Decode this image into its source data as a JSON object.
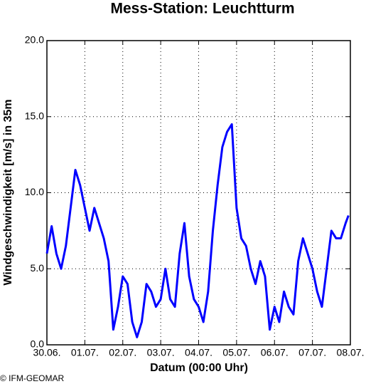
{
  "chart_data": {
    "type": "line",
    "title": "Mess-Station: Leuchtturm",
    "x_label": "Datum (00:00 Uhr)",
    "y_label": "Windgeschwindigkeit [m/s] in 35m",
    "credit": "© IFM-GEOMAR",
    "x": [
      0,
      0.125,
      0.25,
      0.375,
      0.5,
      0.625,
      0.75,
      0.875,
      1,
      1.125,
      1.25,
      1.375,
      1.5,
      1.625,
      1.75,
      1.875,
      2,
      2.125,
      2.25,
      2.375,
      2.5,
      2.625,
      2.75,
      2.875,
      3,
      3.125,
      3.25,
      3.375,
      3.5,
      3.625,
      3.75,
      3.875,
      4,
      4.125,
      4.25,
      4.375,
      4.5,
      4.625,
      4.75,
      4.875,
      5,
      5.125,
      5.25,
      5.375,
      5.5,
      5.625,
      5.75,
      5.875,
      6,
      6.125,
      6.25,
      6.375,
      6.5,
      6.625,
      6.75,
      6.875,
      7,
      7.125,
      7.25,
      7.375,
      7.5,
      7.625,
      7.75,
      7.875,
      7.95
    ],
    "series": [
      {
        "name": "Windgeschwindigkeit",
        "color": "#0000ff",
        "values": [
          6,
          7.8,
          6,
          5,
          6.5,
          9,
          11.5,
          10.5,
          9,
          7.5,
          9,
          8,
          7,
          5.5,
          1,
          2.5,
          4.5,
          4,
          1.5,
          0.5,
          1.5,
          4,
          3.5,
          2.5,
          3,
          5,
          3,
          2.5,
          6,
          8,
          4.5,
          3,
          2.5,
          1.5,
          3.5,
          7.5,
          10.5,
          13,
          14,
          14.5,
          9,
          7,
          6.5,
          5,
          4,
          5.5,
          4.5,
          1,
          2.5,
          1.5,
          3.5,
          2.5,
          2,
          5.5,
          7,
          6,
          5,
          3.5,
          2.5,
          5,
          7.5,
          7,
          7,
          8,
          8.5
        ]
      }
    ],
    "xlim": [
      0,
      8
    ],
    "xticks": [
      {
        "value": 0,
        "label": "30.06."
      },
      {
        "value": 1,
        "label": "01.07."
      },
      {
        "value": 2,
        "label": "02.07."
      },
      {
        "value": 3,
        "label": "03.07."
      },
      {
        "value": 4,
        "label": "04.07."
      },
      {
        "value": 5,
        "label": "05.07."
      },
      {
        "value": 6,
        "label": "06.07."
      },
      {
        "value": 7,
        "label": "07.07."
      },
      {
        "value": 8,
        "label": "08.07."
      }
    ],
    "ylim": [
      0,
      20
    ],
    "yticks": [
      {
        "value": 0,
        "label": "0.0"
      },
      {
        "value": 5,
        "label": "5.0"
      },
      {
        "value": 10,
        "label": "10.0"
      },
      {
        "value": 15,
        "label": "15.0"
      },
      {
        "value": 20,
        "label": "20.0"
      }
    ],
    "grid": true
  }
}
